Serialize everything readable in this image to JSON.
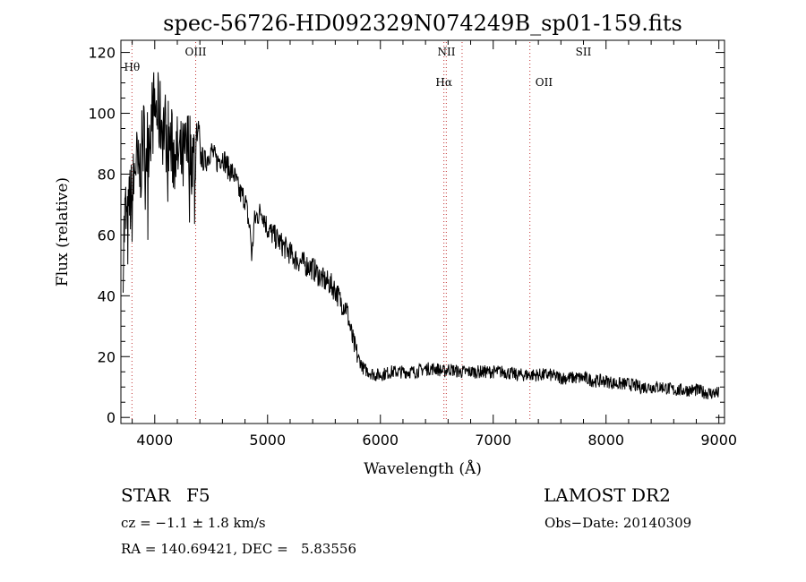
{
  "chart_data": {
    "type": "line",
    "title": "spec-56726-HD092329N074249B_sp01-159.fits",
    "xlabel": "Wavelength (Å)",
    "ylabel": "Flux (relative)",
    "xlim": [
      3700,
      9050
    ],
    "ylim": [
      -2,
      124
    ],
    "xticks": [
      4000,
      5000,
      6000,
      7000,
      8000,
      9000
    ],
    "yticks": [
      0,
      20,
      40,
      60,
      80,
      100,
      120
    ],
    "grid": false,
    "line_color": "#000000",
    "marker_color": "#c03030",
    "series": [
      {
        "x": [
          3720,
          3740,
          3760,
          3780,
          3800,
          3830,
          3860,
          3900,
          3930,
          3960,
          4000,
          4050,
          4100,
          4150,
          4200,
          4250,
          4300,
          4350,
          4400,
          4450,
          4500,
          4550,
          4600,
          4650,
          4700,
          4750,
          4800,
          4850,
          4861,
          4880,
          4900,
          4950,
          5000,
          5050,
          5100,
          5150,
          5200,
          5250,
          5300,
          5350,
          5400,
          5450,
          5500,
          5550,
          5600,
          5650,
          5700,
          5720,
          5750,
          5780,
          5800,
          5850,
          5900,
          5950,
          6000,
          6100,
          6200,
          6300,
          6400,
          6500,
          6563,
          6600,
          6700,
          6800,
          6900,
          7000,
          7100,
          7200,
          7300,
          7400,
          7500,
          7600,
          7700,
          7800,
          7900,
          8000,
          8100,
          8200,
          8300,
          8400,
          8500,
          8600,
          8700,
          8800,
          8900,
          9000
        ],
        "y": [
          55,
          68,
          60,
          72,
          70,
          85,
          78,
          92,
          88,
          96,
          102,
          98,
          94,
          88,
          86,
          84,
          89,
          85,
          86,
          84,
          88,
          84,
          86,
          82,
          80,
          74,
          72,
          60,
          52,
          64,
          66,
          68,
          62,
          60,
          58,
          56,
          54,
          52,
          51,
          50,
          49,
          47,
          45,
          44,
          42,
          38,
          36,
          32,
          26,
          22,
          20,
          16,
          15,
          14,
          14,
          15,
          15,
          15,
          16,
          16,
          15,
          16,
          15,
          15,
          15,
          15,
          15,
          14,
          14,
          14,
          14,
          13,
          13,
          13,
          12,
          12,
          11,
          11,
          10,
          10,
          10,
          9,
          9,
          9,
          8,
          8
        ]
      }
    ],
    "lines": [
      {
        "name": "Hθ",
        "x": 3798
      },
      {
        "name": "OIII",
        "x": 4363
      },
      {
        "name": "NII",
        "x": 6584
      },
      {
        "name": "Hα",
        "x": 6563
      },
      {
        "name": "OII",
        "x": 7325
      },
      {
        "name": "SII",
        "x": 6724
      }
    ]
  },
  "info": {
    "class_label": "STAR",
    "subclass": "F5",
    "survey": "LAMOST DR2",
    "cz": "cz = −1.1 ± 1.8 km/s",
    "obs_date": "Obs−Date: 20140309",
    "coords": "RA = 140.69421, DEC =   5.83556"
  }
}
